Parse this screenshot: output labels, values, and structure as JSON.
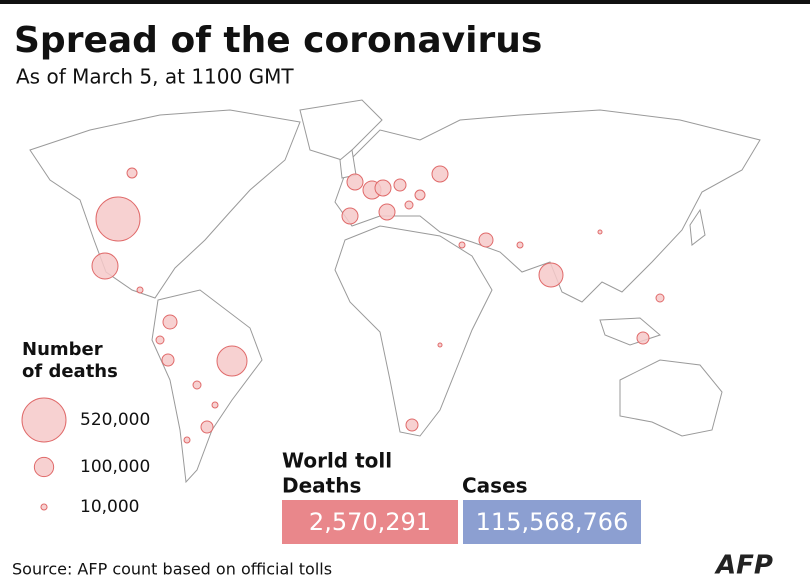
{
  "title": "Spread of the coronavirus",
  "subtitle": "As of March 5, at 1100 GMT",
  "legend": {
    "title": [
      "Number",
      "of deaths"
    ],
    "entries": [
      {
        "value": 520000,
        "label": "520,000"
      },
      {
        "value": 100000,
        "label": "100,000"
      },
      {
        "value": 10000,
        "label": "10,000"
      }
    ]
  },
  "toll": {
    "title": "World toll",
    "deaths": {
      "label": "Deaths",
      "value": "2,570,291"
    },
    "cases": {
      "label": "Cases",
      "value": "115,568,766"
    }
  },
  "source": "Source: AFP count based on official tolls",
  "logo": "AFP"
}
